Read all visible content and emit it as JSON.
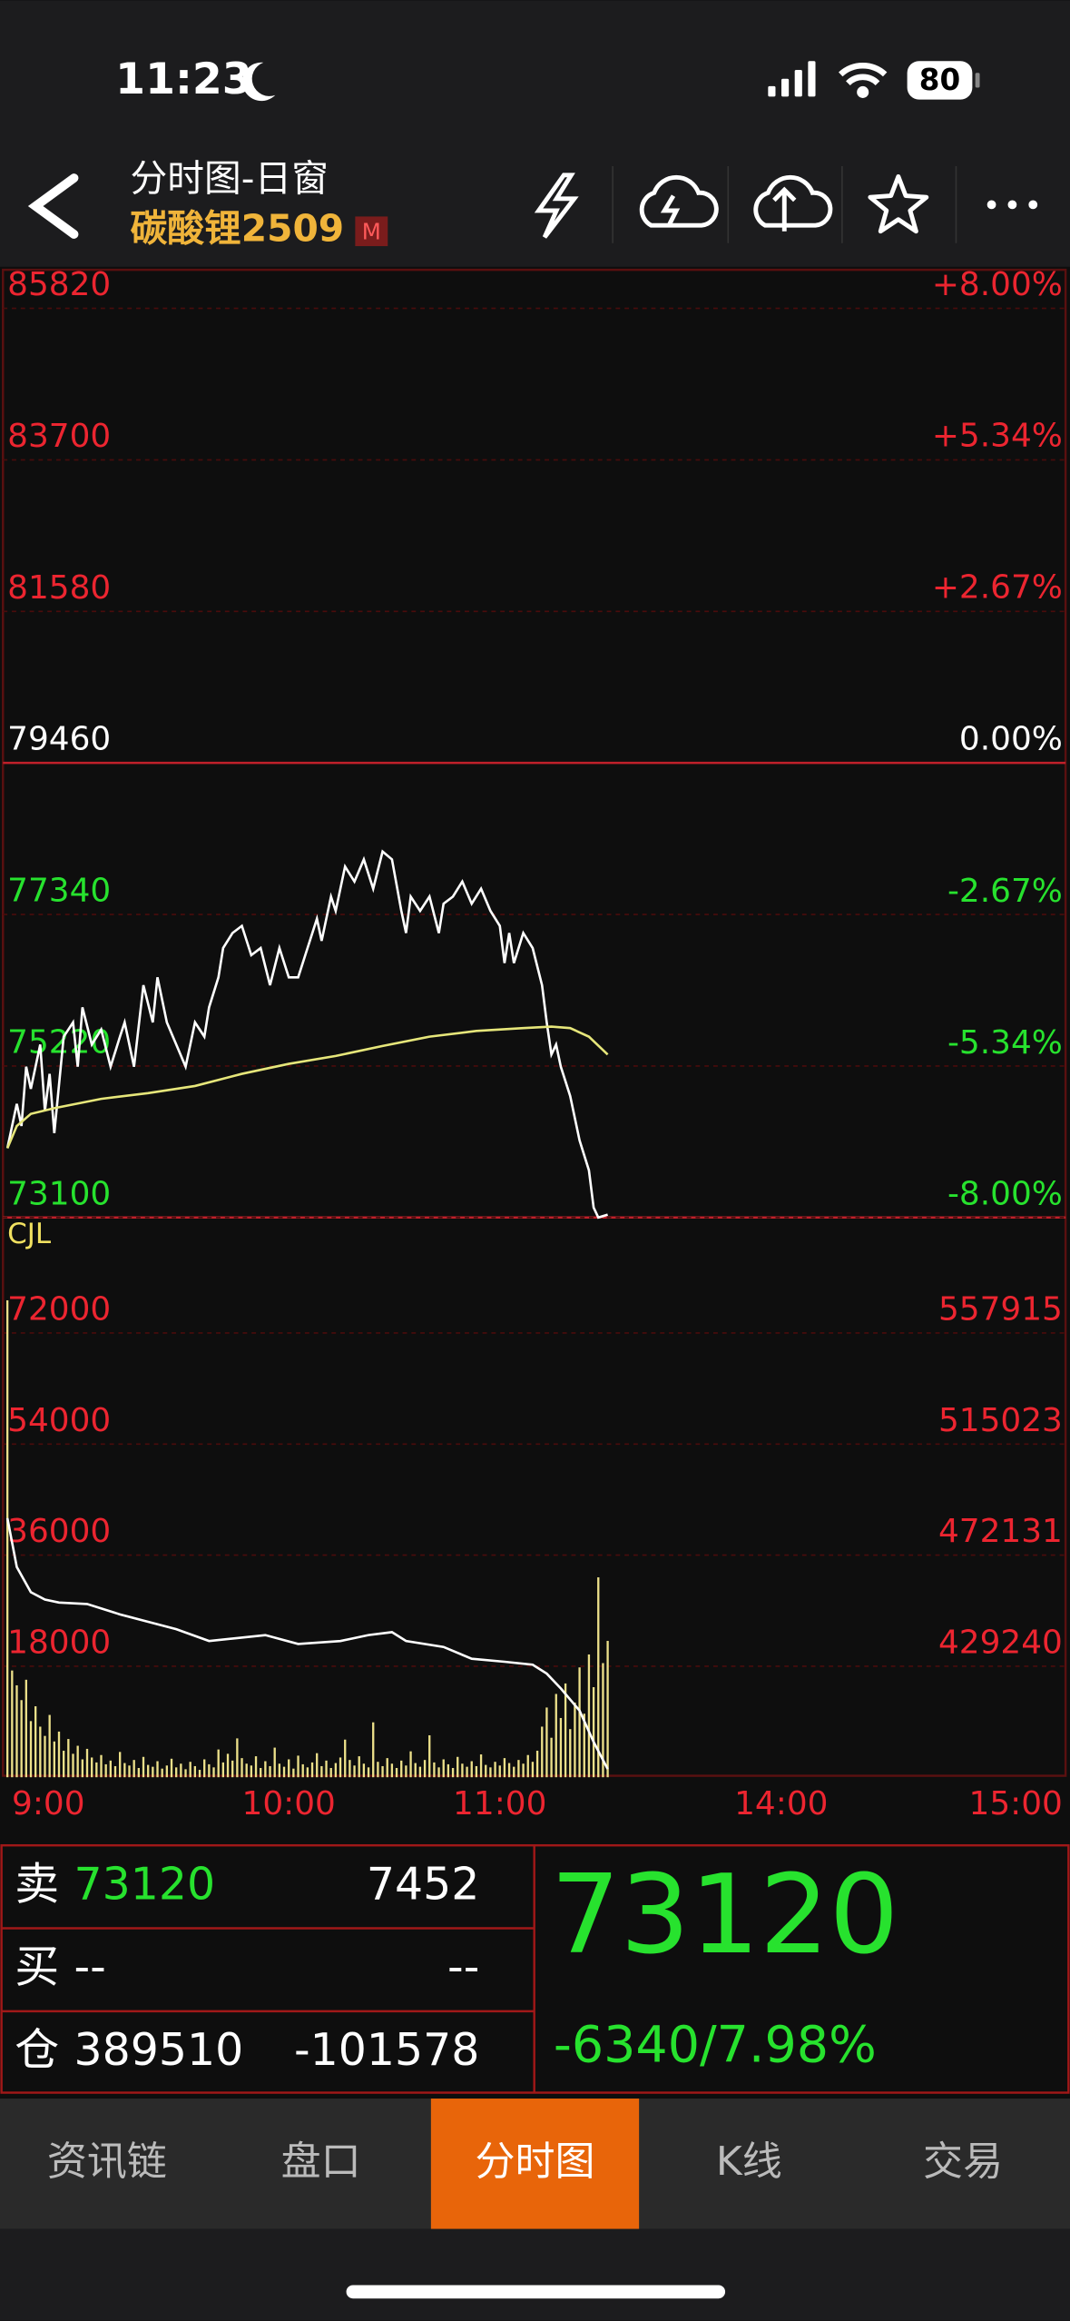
{
  "status_bar": {
    "time": "11:23",
    "battery": "80"
  },
  "header": {
    "title": "分时图-日窗",
    "symbol": "碳酸锂2509",
    "badge": "M"
  },
  "chart_data": [
    {
      "type": "line",
      "xlim": [
        0,
        225
      ],
      "ylim": [
        73100,
        85820
      ],
      "yticks": [
        85820,
        83700,
        81580,
        79460,
        77340,
        75220,
        73100
      ],
      "y2lim": [
        -8,
        8
      ],
      "y2ticks": [
        {
          "value": 8,
          "label": "+8.00%"
        },
        {
          "value": 5.34,
          "label": "+5.34%"
        },
        {
          "value": 2.67,
          "label": "+2.67%"
        },
        {
          "value": 0,
          "label": "0.00%"
        },
        {
          "value": -2.67,
          "label": "-2.67%"
        },
        {
          "value": -5.34,
          "label": "-5.34%"
        },
        {
          "value": -8,
          "label": "-8.00%"
        }
      ],
      "series": [
        {
          "color": "#ffffff",
          "x": [
            0,
            2,
            3,
            4,
            5,
            7,
            8,
            9,
            10,
            12,
            14,
            15,
            16,
            18,
            20,
            22,
            24,
            25,
            27,
            29,
            31,
            32,
            34,
            36,
            38,
            40,
            42,
            43,
            45,
            46,
            48,
            50,
            52,
            54,
            56,
            58,
            60,
            62,
            64,
            66,
            67,
            69,
            70,
            72,
            74,
            76,
            78,
            80,
            82,
            84,
            85,
            86,
            88,
            90,
            92,
            93,
            95,
            97,
            99,
            101,
            103,
            105,
            106,
            107,
            108,
            110,
            112,
            114,
            115,
            116,
            117,
            118,
            120,
            122,
            124,
            125,
            126,
            128
          ],
          "values": [
            74070,
            74690,
            74380,
            75210,
            74900,
            75520,
            74590,
            75110,
            74280,
            75630,
            75830,
            75210,
            76040,
            75520,
            75730,
            75210,
            75630,
            75830,
            75210,
            76350,
            75830,
            76460,
            75830,
            75520,
            75210,
            75830,
            75630,
            76040,
            76460,
            76870,
            77080,
            77180,
            76770,
            76870,
            76350,
            76870,
            76460,
            76460,
            76870,
            77280,
            76970,
            77590,
            77390,
            78010,
            77800,
            78110,
            77700,
            78220,
            78110,
            77390,
            77080,
            77590,
            77390,
            77590,
            77080,
            77490,
            77590,
            77800,
            77490,
            77700,
            77390,
            77180,
            76660,
            77080,
            76660,
            77080,
            76870,
            76350,
            75830,
            75380,
            75520,
            75210,
            74800,
            74180,
            73760,
            73240,
            73100,
            73140
          ]
        },
        {
          "color": "#e6e67a",
          "x": [
            0,
            2,
            5,
            10,
            20,
            30,
            40,
            50,
            60,
            70,
            80,
            90,
            100,
            110,
            116,
            120,
            124,
            128
          ],
          "values": [
            74070,
            74380,
            74550,
            74630,
            74760,
            74840,
            74940,
            75110,
            75250,
            75360,
            75500,
            75630,
            75710,
            75750,
            75770,
            75750,
            75630,
            75380
          ]
        }
      ]
    },
    {
      "type": "bar",
      "label": "CJL",
      "xlim": [
        0,
        225
      ],
      "xticks": [
        {
          "value": 0,
          "label": "9:00"
        },
        {
          "value": 60,
          "label": "10:00"
        },
        {
          "value": 105,
          "label": "11:00"
        },
        {
          "value": 165,
          "label": "14:00"
        },
        {
          "value": 225,
          "label": "15:00"
        }
      ],
      "ylim": [
        0,
        90000
      ],
      "yticks": [
        72000,
        54000,
        36000,
        18000
      ],
      "y2lim": [
        386348,
        600807
      ],
      "y2ticks": [
        557915,
        515023,
        472131,
        429240
      ],
      "series": [
        {
          "type": "bar",
          "color": "#ece08a",
          "x": [
            0,
            1,
            2,
            3,
            4,
            5,
            6,
            7,
            8,
            9,
            10,
            11,
            12,
            13,
            14,
            15,
            16,
            17,
            18,
            19,
            20,
            21,
            22,
            23,
            24,
            25,
            26,
            27,
            28,
            29,
            30,
            31,
            32,
            33,
            34,
            35,
            36,
            37,
            38,
            39,
            40,
            41,
            42,
            43,
            44,
            45,
            46,
            47,
            48,
            49,
            50,
            51,
            52,
            53,
            54,
            55,
            56,
            57,
            58,
            59,
            60,
            61,
            62,
            63,
            64,
            65,
            66,
            67,
            68,
            69,
            70,
            71,
            72,
            73,
            74,
            75,
            76,
            77,
            78,
            79,
            80,
            81,
            82,
            83,
            84,
            85,
            86,
            87,
            88,
            89,
            90,
            91,
            92,
            93,
            94,
            95,
            96,
            97,
            98,
            99,
            100,
            101,
            102,
            103,
            104,
            105,
            106,
            107,
            108,
            109,
            110,
            111,
            112,
            113,
            114,
            115,
            116,
            117,
            118,
            119,
            120,
            121,
            122,
            123,
            124,
            125,
            126,
            127,
            128
          ],
          "values": [
            77300,
            17300,
            14900,
            12500,
            15800,
            9100,
            11500,
            8200,
            6700,
            10100,
            5800,
            7400,
            4300,
            6200,
            3800,
            5100,
            2900,
            4600,
            3200,
            2400,
            3600,
            2100,
            2700,
            1800,
            4100,
            2300,
            1900,
            2800,
            1500,
            3300,
            2000,
            1700,
            2600,
            1400,
            1900,
            3000,
            1600,
            2200,
            1300,
            2500,
            1800,
            1200,
            2900,
            2100,
            1600,
            4500,
            2400,
            3800,
            2700,
            6300,
            3100,
            2200,
            1900,
            3400,
            1500,
            2600,
            1800,
            4800,
            2200,
            1700,
            2900,
            1400,
            3500,
            2100,
            1600,
            2400,
            3900,
            1800,
            2700,
            1500,
            2300,
            3200,
            6100,
            2800,
            1900,
            3400,
            2200,
            1600,
            8900,
            2500,
            1800,
            3100,
            2200,
            1500,
            2700,
            1900,
            4200,
            2300,
            1700,
            2800,
            6800,
            2400,
            1600,
            2900,
            2100,
            1500,
            3300,
            2200,
            1700,
            2600,
            1800,
            3700,
            2000,
            1600,
            2500,
            1900,
            3100,
            2300,
            1700,
            2800,
            2200,
            3600,
            2500,
            4300,
            8200,
            11300,
            6400,
            13500,
            9600,
            15200,
            7800,
            12100,
            17800,
            10300,
            19900,
            14600,
            32400,
            18500,
            22100
          ]
        },
        {
          "type": "line",
          "axis": "y2",
          "color": "#ffffff",
          "x": [
            0,
            2,
            5,
            8,
            11,
            17,
            24,
            30,
            36,
            43,
            49,
            55,
            62,
            71,
            77,
            82,
            85,
            93,
            99,
            106,
            112,
            115,
            118,
            122,
            125,
            128
          ],
          "values": [
            486430,
            467560,
            457830,
            454970,
            453830,
            453260,
            449250,
            446390,
            443540,
            438960,
            440100,
            441250,
            437820,
            438960,
            441250,
            442390,
            438960,
            436670,
            432100,
            430950,
            429810,
            426380,
            420660,
            412080,
            400000,
            389510
          ]
        }
      ]
    }
  ],
  "quote": {
    "sell_label": "卖",
    "sell_price": 73120,
    "sell_volume": 7452,
    "buy_label": "买",
    "buy_price": "--",
    "buy_volume": "--",
    "oi_label": "仓",
    "open_interest": 389510,
    "oi_change": -101578,
    "last_price": 73120,
    "change": "-6340/7.98%"
  },
  "tabs": {
    "items": [
      "资讯链",
      "盘口",
      "分时图",
      "K线",
      "交易"
    ],
    "active": 2
  }
}
